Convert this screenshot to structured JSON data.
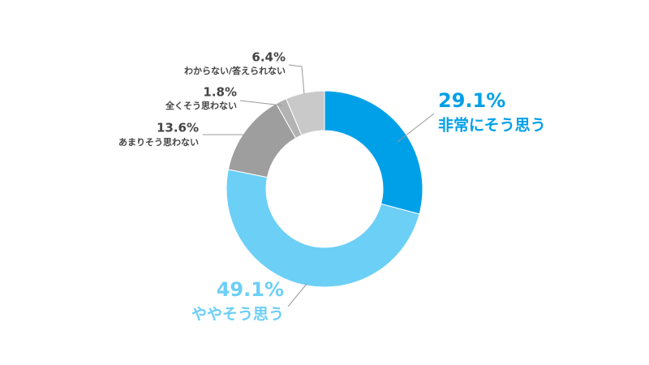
{
  "chart_data": {
    "type": "donut",
    "categories": [
      "非常にそう思う",
      "ややそう思う",
      "あまりそう思わない",
      "全くそう思わない",
      "わからない/答えられない"
    ],
    "values": [
      29.1,
      49.1,
      13.6,
      1.8,
      6.4
    ],
    "value_labels": [
      "29.1%",
      "49.1%",
      "13.6%",
      "1.8%",
      "6.4%"
    ],
    "colors": [
      "#00a0e9",
      "#6ccff6",
      "#9e9e9e",
      "#b3b3b3",
      "#c9c9c9"
    ]
  }
}
